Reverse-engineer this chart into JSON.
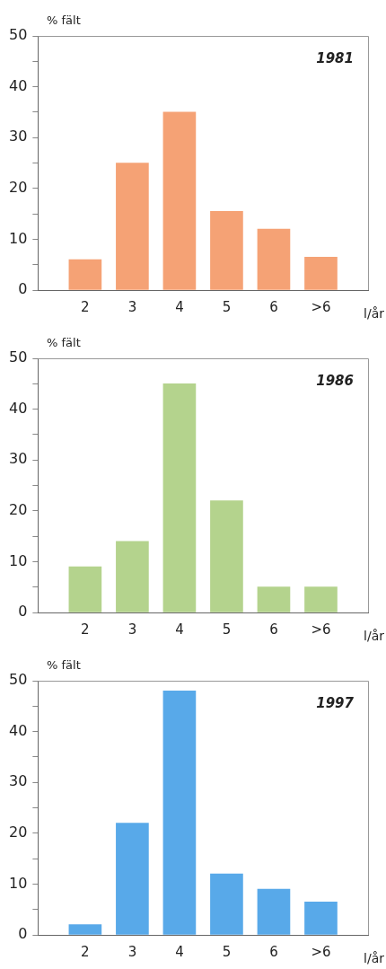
{
  "chart_data": [
    {
      "type": "bar",
      "title": "1981",
      "ylabel": "% fält",
      "xlabel": "l/år",
      "categories": [
        "2",
        "3",
        "4",
        "5",
        "6",
        ">6"
      ],
      "values": [
        6,
        25,
        35,
        15.5,
        12,
        6.5
      ],
      "color": "#f5a275",
      "ylim": [
        0,
        50
      ],
      "yticks": [
        0,
        {
          "value": 5,
          "label": null
        },
        10,
        {
          "value": 15,
          "label": null
        },
        20,
        {
          "value": 25,
          "label": null
        },
        30,
        {
          "value": 35,
          "label": null
        },
        40,
        {
          "value": 45,
          "label": null
        },
        50
      ],
      "grid": false,
      "legend": false
    },
    {
      "type": "bar",
      "title": "1986",
      "ylabel": "% fält",
      "xlabel": "l/år",
      "categories": [
        "2",
        "3",
        "4",
        "5",
        "6",
        ">6"
      ],
      "values": [
        9,
        14,
        45,
        22,
        5,
        5
      ],
      "color": "#b4d38d",
      "ylim": [
        0,
        50
      ],
      "yticks": [
        0,
        {
          "value": 5,
          "label": null
        },
        10,
        {
          "value": 15,
          "label": null
        },
        20,
        {
          "value": 25,
          "label": null
        },
        30,
        {
          "value": 35,
          "label": null
        },
        40,
        {
          "value": 45,
          "label": null
        },
        50
      ],
      "grid": false,
      "legend": false
    },
    {
      "type": "bar",
      "title": "1997",
      "ylabel": "% fält",
      "xlabel": "l/år",
      "categories": [
        "2",
        "3",
        "4",
        "5",
        "6",
        ">6"
      ],
      "values": [
        2,
        22,
        48,
        12,
        9,
        6.5
      ],
      "color": "#58a9e9",
      "ylim": [
        0,
        50
      ],
      "yticks": [
        0,
        {
          "value": 5,
          "label": null
        },
        10,
        {
          "value": 15,
          "label": null
        },
        20,
        {
          "value": 25,
          "label": null
        },
        30,
        {
          "value": 35,
          "label": null
        },
        40,
        {
          "value": 45,
          "label": null
        },
        50
      ],
      "grid": false,
      "legend": false
    }
  ]
}
